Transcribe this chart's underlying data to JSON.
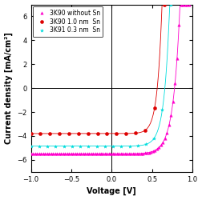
{
  "title": "",
  "xlabel": "Voltage [V]",
  "ylabel": "Current density [mA/cm²]",
  "xlim": [
    -1.0,
    1.0
  ],
  "ylim": [
    -7,
    7
  ],
  "yticks": [
    -6,
    -4,
    -2,
    0,
    2,
    4,
    6
  ],
  "xticks": [
    -1.0,
    -0.5,
    0.0,
    0.5,
    1.0
  ],
  "series": [
    {
      "label": "3K90 without Sn",
      "color": "#FF00CC",
      "marker": "^",
      "markersize": 2.5,
      "linewidth": 0.6,
      "Jsc": -5.5,
      "Voc": 0.78,
      "n": 2.8,
      "Jsat": -5.45,
      "slope_neg": 0.08
    },
    {
      "label": "3K90 1.0 nm  Sn",
      "color": "#DD0000",
      "marker": "o",
      "markersize": 3.0,
      "linewidth": 0.6,
      "Jsc": -3.8,
      "Voc": 0.565,
      "n": 2.2,
      "Jsat": -3.6,
      "slope_neg": 0.12
    },
    {
      "label": "3K91 0.3 nm  Sn",
      "color": "#00DDDD",
      "marker": "*",
      "markersize": 3.0,
      "linewidth": 0.6,
      "Jsc": -4.9,
      "Voc": 0.66,
      "n": 2.5,
      "Jsat": -4.7,
      "slope_neg": 0.1
    }
  ],
  "background_color": "#ffffff",
  "legend_fontsize": 5.5,
  "axis_fontsize": 7,
  "tick_fontsize": 6
}
